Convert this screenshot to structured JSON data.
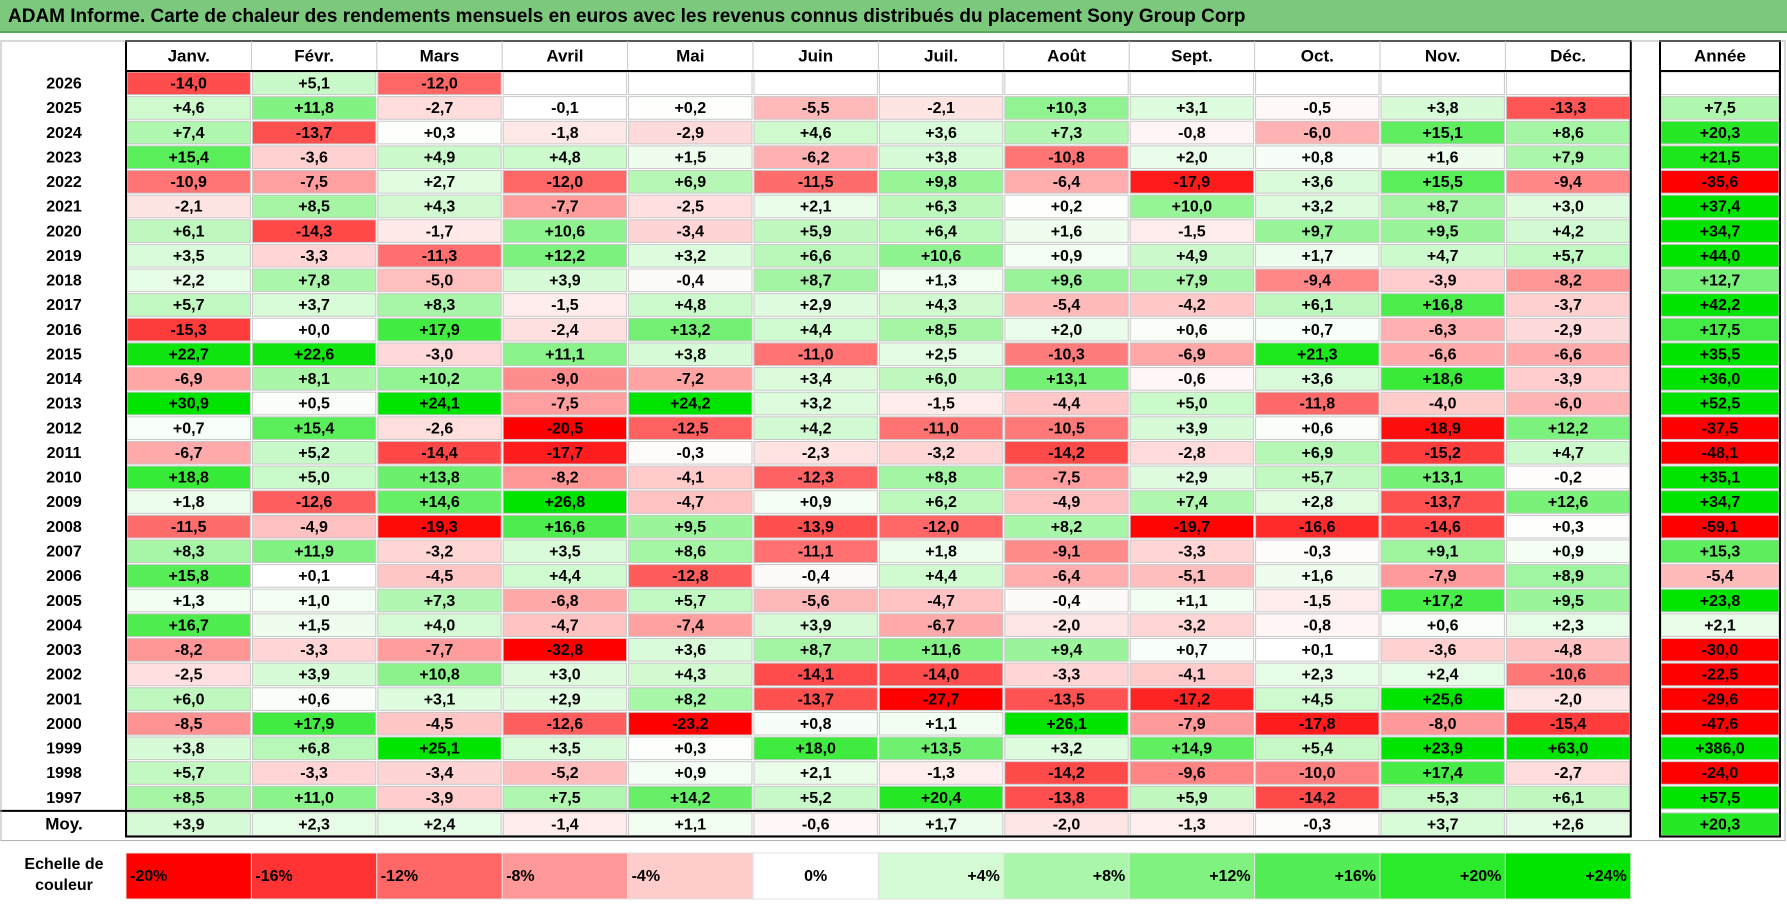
{
  "title": "ADAM Informe. Carte de chaleur des rendements mensuels en euros avec les revenus connus distribués du placement Sony Group Corp",
  "chart_data": {
    "type": "heatmap",
    "title": "ADAM Informe. Carte de chaleur des rendements mensuels en euros avec les revenus connus distribués du placement Sony Group Corp",
    "columns": [
      "Janv.",
      "Févr.",
      "Mars",
      "Avril",
      "Mai",
      "Juin",
      "Juil.",
      "Août",
      "Sept.",
      "Oct.",
      "Nov.",
      "Déc."
    ],
    "year_column": "Année",
    "rows": [
      {
        "year": "2026",
        "values": [
          "-14,0",
          "+5,1",
          "-12,0",
          "",
          "",
          "",
          "",
          "",
          "",
          "",
          "",
          ""
        ],
        "annual": ""
      },
      {
        "year": "2025",
        "values": [
          "+4,6",
          "+11,8",
          "-2,7",
          "-0,1",
          "+0,2",
          "-5,5",
          "-2,1",
          "+10,3",
          "+3,1",
          "-0,5",
          "+3,8",
          "-13,3"
        ],
        "annual": "+7,5"
      },
      {
        "year": "2024",
        "values": [
          "+7,4",
          "-13,7",
          "+0,3",
          "-1,8",
          "-2,9",
          "+4,6",
          "+3,6",
          "+7,3",
          "-0,8",
          "-6,0",
          "+15,1",
          "+8,6"
        ],
        "annual": "+20,3"
      },
      {
        "year": "2023",
        "values": [
          "+15,4",
          "-3,6",
          "+4,9",
          "+4,8",
          "+1,5",
          "-6,2",
          "+3,8",
          "-10,8",
          "+2,0",
          "+0,8",
          "+1,6",
          "+7,9"
        ],
        "annual": "+21,5"
      },
      {
        "year": "2022",
        "values": [
          "-10,9",
          "-7,5",
          "+2,7",
          "-12,0",
          "+6,9",
          "-11,5",
          "+9,8",
          "-6,4",
          "-17,9",
          "+3,6",
          "+15,5",
          "-9,4"
        ],
        "annual": "-35,6"
      },
      {
        "year": "2021",
        "values": [
          "-2,1",
          "+8,5",
          "+4,3",
          "-7,7",
          "-2,5",
          "+2,1",
          "+6,3",
          "+0,2",
          "+10,0",
          "+3,2",
          "+8,7",
          "+3,0"
        ],
        "annual": "+37,4"
      },
      {
        "year": "2020",
        "values": [
          "+6,1",
          "-14,3",
          "-1,7",
          "+10,6",
          "-3,4",
          "+5,9",
          "+6,4",
          "+1,6",
          "-1,5",
          "+9,7",
          "+9,5",
          "+4,2"
        ],
        "annual": "+34,7"
      },
      {
        "year": "2019",
        "values": [
          "+3,5",
          "-3,3",
          "-11,3",
          "+12,2",
          "+3,2",
          "+6,6",
          "+10,6",
          "+0,9",
          "+4,9",
          "+1,7",
          "+4,7",
          "+5,7"
        ],
        "annual": "+44,0"
      },
      {
        "year": "2018",
        "values": [
          "+2,2",
          "+7,8",
          "-5,0",
          "+3,9",
          "-0,4",
          "+8,7",
          "+1,3",
          "+9,6",
          "+7,9",
          "-9,4",
          "-3,9",
          "-8,2"
        ],
        "annual": "+12,7"
      },
      {
        "year": "2017",
        "values": [
          "+5,7",
          "+3,7",
          "+8,3",
          "-1,5",
          "+4,8",
          "+2,9",
          "+4,3",
          "-5,4",
          "-4,2",
          "+6,1",
          "+16,8",
          "-3,7"
        ],
        "annual": "+42,2"
      },
      {
        "year": "2016",
        "values": [
          "-15,3",
          "+0,0",
          "+17,9",
          "-2,4",
          "+13,2",
          "+4,4",
          "+8,5",
          "+2,0",
          "+0,6",
          "+0,7",
          "-6,3",
          "-2,9"
        ],
        "annual": "+17,5"
      },
      {
        "year": "2015",
        "values": [
          "+22,7",
          "+22,6",
          "-3,0",
          "+11,1",
          "+3,8",
          "-11,0",
          "+2,5",
          "-10,3",
          "-6,9",
          "+21,3",
          "-6,6",
          "-6,6"
        ],
        "annual": "+35,5"
      },
      {
        "year": "2014",
        "values": [
          "-6,9",
          "+8,1",
          "+10,2",
          "-9,0",
          "-7,2",
          "+3,4",
          "+6,0",
          "+13,1",
          "-0,6",
          "+3,6",
          "+18,6",
          "-3,9"
        ],
        "annual": "+36,0"
      },
      {
        "year": "2013",
        "values": [
          "+30,9",
          "+0,5",
          "+24,1",
          "-7,5",
          "+24,2",
          "+3,2",
          "-1,5",
          "-4,4",
          "+5,0",
          "-11,8",
          "-4,0",
          "-6,0"
        ],
        "annual": "+52,5"
      },
      {
        "year": "2012",
        "values": [
          "+0,7",
          "+15,4",
          "-2,6",
          "-20,5",
          "-12,5",
          "+4,2",
          "-11,0",
          "-10,5",
          "+3,9",
          "+0,6",
          "-18,9",
          "+12,2"
        ],
        "annual": "-37,5"
      },
      {
        "year": "2011",
        "values": [
          "-6,7",
          "+5,2",
          "-14,4",
          "-17,7",
          "-0,3",
          "-2,3",
          "-3,2",
          "-14,2",
          "-2,8",
          "+6,9",
          "-15,2",
          "+4,7"
        ],
        "annual": "-48,1"
      },
      {
        "year": "2010",
        "values": [
          "+18,8",
          "+5,0",
          "+13,8",
          "-8,2",
          "-4,1",
          "-12,3",
          "+8,8",
          "-7,5",
          "+2,9",
          "+5,7",
          "+13,1",
          "-0,2"
        ],
        "annual": "+35,1"
      },
      {
        "year": "2009",
        "values": [
          "+1,8",
          "-12,6",
          "+14,6",
          "+26,8",
          "-4,7",
          "+0,9",
          "+6,2",
          "-4,9",
          "+7,4",
          "+2,8",
          "-13,7",
          "+12,6"
        ],
        "annual": "+34,7"
      },
      {
        "year": "2008",
        "values": [
          "-11,5",
          "-4,9",
          "-19,3",
          "+16,6",
          "+9,5",
          "-13,9",
          "-12,0",
          "+8,2",
          "-19,7",
          "-16,6",
          "-14,6",
          "+0,3"
        ],
        "annual": "-59,1"
      },
      {
        "year": "2007",
        "values": [
          "+8,3",
          "+11,9",
          "-3,2",
          "+3,5",
          "+8,6",
          "-11,1",
          "+1,8",
          "-9,1",
          "-3,3",
          "-0,3",
          "+9,1",
          "+0,9"
        ],
        "annual": "+15,3"
      },
      {
        "year": "2006",
        "values": [
          "+15,8",
          "+0,1",
          "-4,5",
          "+4,4",
          "-12,8",
          "-0,4",
          "+4,4",
          "-6,4",
          "-5,1",
          "+1,6",
          "-7,9",
          "+8,9"
        ],
        "annual": "-5,4"
      },
      {
        "year": "2005",
        "values": [
          "+1,3",
          "+1,0",
          "+7,3",
          "-6,8",
          "+5,7",
          "-5,6",
          "-4,7",
          "-0,4",
          "+1,1",
          "-1,5",
          "+17,2",
          "+9,5"
        ],
        "annual": "+23,8"
      },
      {
        "year": "2004",
        "values": [
          "+16,7",
          "+1,5",
          "+4,0",
          "-4,7",
          "-7,4",
          "+3,9",
          "-6,7",
          "-2,0",
          "-3,2",
          "-0,8",
          "+0,6",
          "+2,3"
        ],
        "annual": "+2,1"
      },
      {
        "year": "2003",
        "values": [
          "-8,2",
          "-3,3",
          "-7,7",
          "-32,8",
          "+3,6",
          "+8,7",
          "+11,6",
          "+9,4",
          "+0,7",
          "+0,1",
          "-3,6",
          "-4,8"
        ],
        "annual": "-30,0"
      },
      {
        "year": "2002",
        "values": [
          "-2,5",
          "+3,9",
          "+10,8",
          "+3,0",
          "+4,3",
          "-14,1",
          "-14,0",
          "-3,3",
          "-4,1",
          "+2,3",
          "+2,4",
          "-10,6"
        ],
        "annual": "-22,5"
      },
      {
        "year": "2001",
        "values": [
          "+6,0",
          "+0,6",
          "+3,1",
          "+2,9",
          "+8,2",
          "-13,7",
          "-27,7",
          "-13,5",
          "-17,2",
          "+4,5",
          "+25,6",
          "-2,0"
        ],
        "annual": "-29,6"
      },
      {
        "year": "2000",
        "values": [
          "-8,5",
          "+17,9",
          "-4,5",
          "-12,6",
          "-23,2",
          "+0,8",
          "+1,1",
          "+26,1",
          "-7,9",
          "-17,8",
          "-8,0",
          "-15,4"
        ],
        "annual": "-47,6"
      },
      {
        "year": "1999",
        "values": [
          "+3,8",
          "+6,8",
          "+25,1",
          "+3,5",
          "+0,3",
          "+18,0",
          "+13,5",
          "+3,2",
          "+14,9",
          "+5,4",
          "+23,9",
          "+63,0"
        ],
        "annual": "+386,0"
      },
      {
        "year": "1998",
        "values": [
          "+5,7",
          "-3,3",
          "-3,4",
          "-5,2",
          "+0,9",
          "+2,1",
          "-1,3",
          "-14,2",
          "-9,6",
          "-10,0",
          "+17,4",
          "-2,7"
        ],
        "annual": "-24,0"
      },
      {
        "year": "1997",
        "values": [
          "+8,5",
          "+11,0",
          "-3,9",
          "+7,5",
          "+14,2",
          "+5,2",
          "+20,4",
          "-13,8",
          "+5,9",
          "-14,2",
          "+5,3",
          "+6,1"
        ],
        "annual": "+57,5"
      }
    ],
    "average": {
      "label": "Moy.",
      "values": [
        "+3,9",
        "+2,3",
        "+2,4",
        "-1,4",
        "+1,1",
        "-0,6",
        "+1,7",
        "-2,0",
        "-1,3",
        "-0,3",
        "+3,7",
        "+2,6"
      ],
      "annual": "+20,3"
    },
    "scale": {
      "label_line1": "Echelle de",
      "label_line2": "couleur",
      "labels": [
        "-20%",
        "-16%",
        "-12%",
        "-8%",
        "-4%",
        "0%",
        "+4%",
        "+8%",
        "+12%",
        "+16%",
        "+20%",
        "+24%"
      ],
      "values": [
        -20,
        -16,
        -12,
        -8,
        -4,
        0,
        4,
        8,
        12,
        16,
        20,
        24
      ]
    },
    "colors": {
      "negative_strong": "#ff0000",
      "neutral": "#ffffff",
      "positive_strong": "#00e400",
      "title_bg": "#7cc97e",
      "grid": "#c8c8c8",
      "border": "#000000"
    }
  }
}
